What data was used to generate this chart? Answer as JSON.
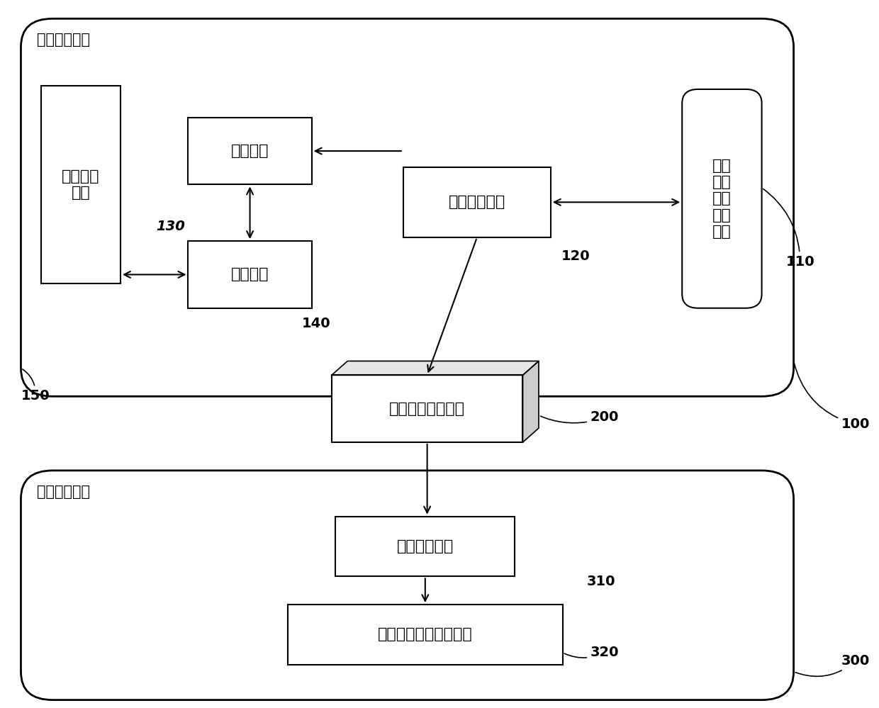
{
  "bg_color": "#ffffff",
  "line_color": "#000000",
  "zone1_label": "安全区域一区",
  "zone3_label": "安全区域三区",
  "font_size_box": 16,
  "font_size_label": 14,
  "font_size_zone": 15,
  "sub_label": "变电运行\n设备",
  "rd_label": "远动装置",
  "mc_label": "测控装置",
  "pc_label": "规约转换装置",
  "plt_label": "变电\n运行\n设备\n控制\n平台",
  "iso_label": "数据正向隔离装置",
  "di_label": "数据整合平台",
  "dp_label": "变电运行信息展示平台"
}
